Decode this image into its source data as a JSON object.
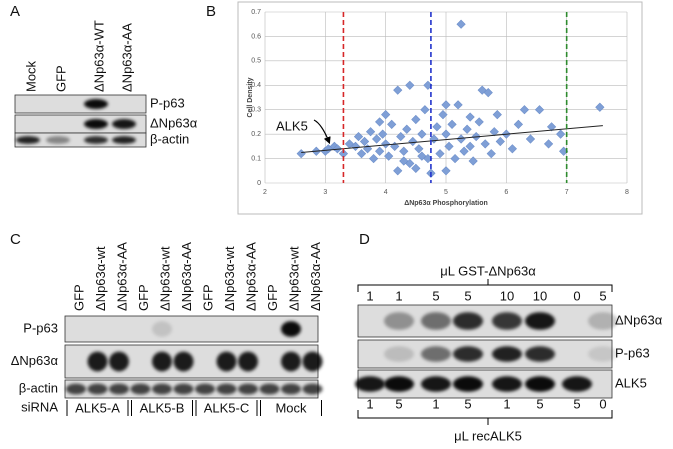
{
  "panel_labels": [
    "A",
    "B",
    "C",
    "D"
  ],
  "panel_a": {
    "lanes": [
      "Mock",
      "GFP",
      "ΔNp63α-WT",
      "ΔNp63α-AA"
    ],
    "rows": [
      "P-p63",
      "ΔNp63α",
      "β-actin"
    ]
  },
  "chart_data": {
    "type": "scatter",
    "x_label": "ΔNp63α Phosphorylation",
    "y_label": "Cell Density",
    "color": "#7f9fd6",
    "xlim": [
      2,
      8
    ],
    "ylim": [
      0,
      0.7
    ],
    "xticks": [
      2,
      3,
      4,
      5,
      6,
      7,
      8
    ],
    "yticks": [
      0,
      0.1,
      0.2,
      0.3,
      0.4,
      0.5,
      0.6,
      0.7
    ],
    "grid": true,
    "x": [
      2.6,
      2.85,
      3.0,
      3.05,
      3.15,
      3.2,
      3.3,
      3.4,
      3.5,
      3.55,
      3.6,
      3.65,
      3.7,
      3.75,
      3.8,
      3.85,
      3.9,
      3.95,
      4.0,
      4.05,
      4.1,
      4.15,
      4.2,
      4.2,
      4.25,
      4.3,
      4.35,
      4.4,
      4.4,
      4.45,
      4.5,
      4.5,
      4.55,
      4.6,
      4.65,
      4.7,
      4.7,
      4.75,
      4.8,
      4.85,
      4.9,
      4.95,
      5.0,
      5.0,
      5.05,
      5.1,
      5.15,
      5.2,
      5.25,
      5.25,
      5.3,
      5.35,
      5.4,
      5.45,
      5.5,
      5.55,
      5.6,
      5.65,
      5.7,
      5.75,
      5.8,
      5.85,
      5.9,
      6.0,
      6.1,
      6.2,
      6.3,
      6.4,
      6.55,
      6.7,
      6.75,
      6.9,
      6.95,
      7.55,
      4.0,
      4.6,
      5.0,
      5.4,
      3.9,
      4.3
    ],
    "values": [
      0.12,
      0.13,
      0.13,
      0.14,
      0.15,
      0.14,
      0.12,
      0.16,
      0.15,
      0.19,
      0.12,
      0.17,
      0.14,
      0.21,
      0.1,
      0.18,
      0.13,
      0.2,
      0.16,
      0.11,
      0.24,
      0.15,
      0.38,
      0.05,
      0.19,
      0.13,
      0.22,
      0.4,
      0.08,
      0.17,
      0.26,
      0.06,
      0.14,
      0.2,
      0.3,
      0.4,
      0.1,
      0.04,
      0.18,
      0.23,
      0.12,
      0.28,
      0.05,
      0.2,
      0.15,
      0.24,
      0.1,
      0.32,
      0.65,
      0.18,
      0.13,
      0.22,
      0.27,
      0.09,
      0.19,
      0.25,
      0.38,
      0.16,
      0.37,
      0.12,
      0.21,
      0.28,
      0.17,
      0.2,
      0.14,
      0.24,
      0.3,
      0.18,
      0.3,
      0.16,
      0.23,
      0.2,
      0.13,
      0.31,
      0.28,
      0.11,
      0.32,
      0.15,
      0.25,
      0.09
    ],
    "reference_lines": [
      {
        "x": 3.3,
        "color": "#d62728"
      },
      {
        "x": 4.75,
        "color": "#2233cc"
      },
      {
        "x": 7,
        "color": "#2e8b2e"
      }
    ],
    "trendline": {
      "x": [
        2.6,
        7.6
      ],
      "y": [
        0.125,
        0.235
      ]
    },
    "annotation": {
      "text": "ALK5",
      "x": 3.05,
      "y": 0.14
    }
  },
  "panel_c": {
    "lanes": [
      "GFP",
      "ΔNp63α-wt",
      "ΔNp63α-AA",
      "GFP",
      "ΔNp63α-wt",
      "ΔNp63α-AA",
      "GFP",
      "ΔNp63α-wt",
      "ΔNp63α-AA",
      "GFP",
      "ΔNp63α-wt",
      "ΔNp63α-AA"
    ],
    "rows": [
      "P-p63",
      "ΔNp63α",
      "β-actin"
    ],
    "group_title": "siRNA",
    "groups": [
      "ALK5-A",
      "ALK5-B",
      "ALK5-C",
      "Mock"
    ]
  },
  "panel_d": {
    "top_title": "μL GST-ΔNp63α",
    "top_amounts": [
      1,
      1,
      5,
      5,
      10,
      10,
      0,
      5
    ],
    "rows": [
      "ΔNp63α",
      "P-p63",
      "ALK5"
    ],
    "bottom_amounts": [
      1,
      5,
      1,
      5,
      1,
      5,
      5,
      0
    ],
    "bottom_title": "μL recALK5"
  }
}
